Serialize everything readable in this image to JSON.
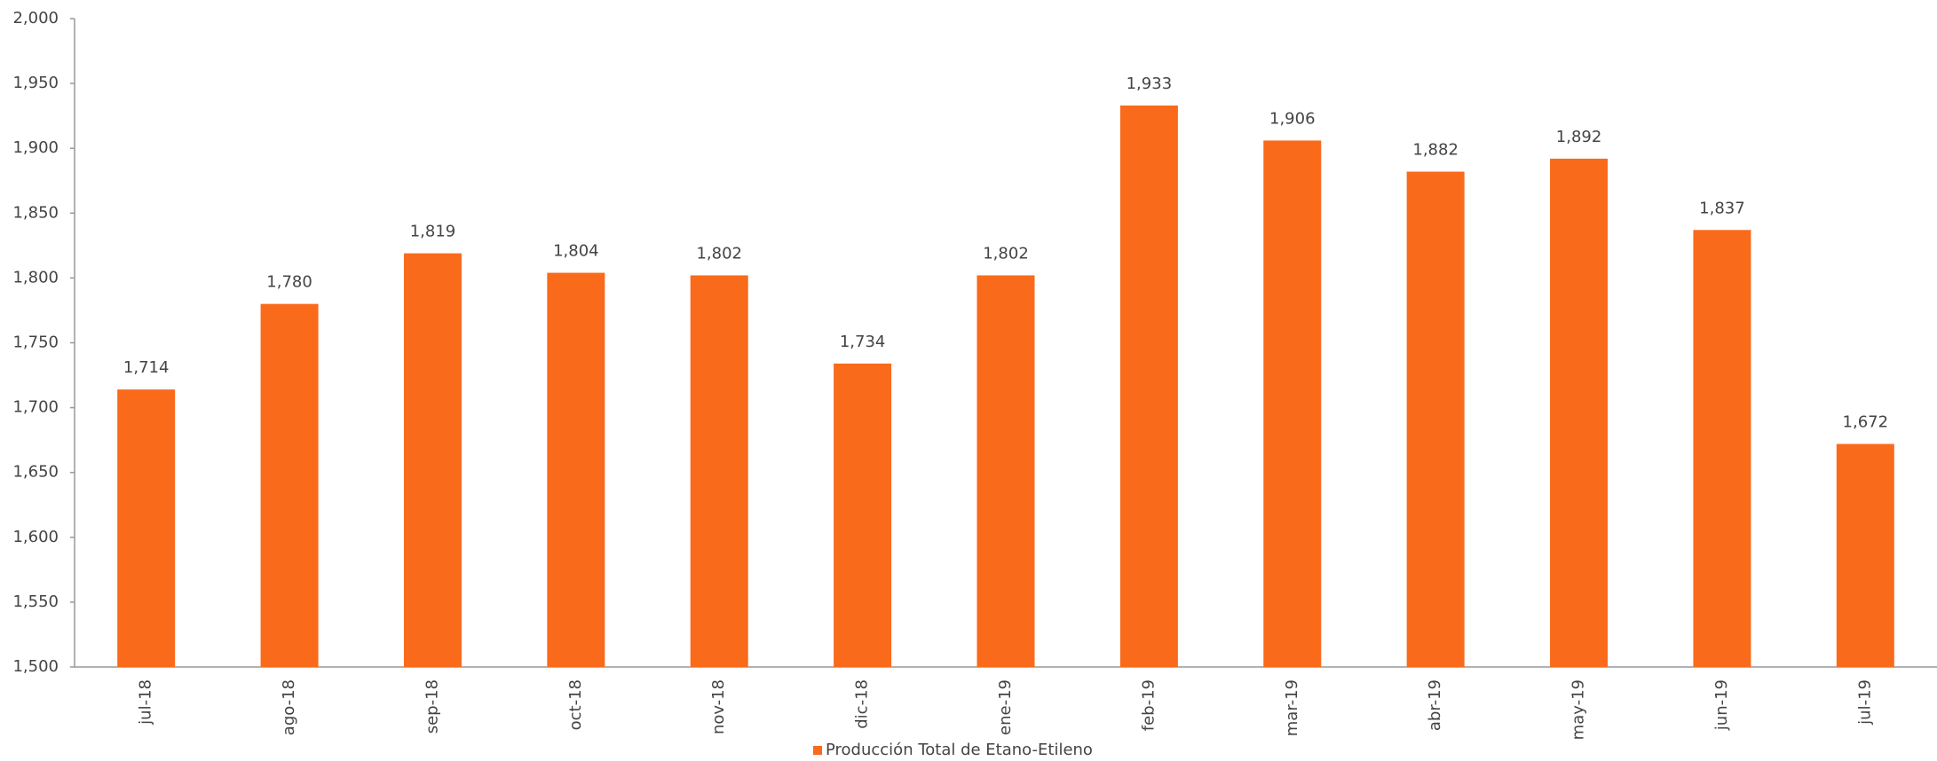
{
  "chart_data": {
    "type": "bar",
    "categories": [
      "jul-18",
      "ago-18",
      "sep-18",
      "oct-18",
      "nov-18",
      "dic-18",
      "ene-19",
      "feb-19",
      "mar-19",
      "abr-19",
      "may-19",
      "jun-19",
      "jul-19"
    ],
    "series": [
      {
        "name": "Producción Total de Etano-Etileno",
        "color": "#f96a1b",
        "values": [
          1714,
          1780,
          1819,
          1804,
          1802,
          1734,
          1802,
          1933,
          1906,
          1882,
          1892,
          1837,
          1672
        ],
        "value_labels": [
          "1,714",
          "1,780",
          "1,819",
          "1,804",
          "1,802",
          "1,734",
          "1,802",
          "1,933",
          "1,906",
          "1,882",
          "1,892",
          "1,837",
          "1,672"
        ]
      }
    ],
    "ylim": [
      1500,
      2000
    ],
    "yticks": [
      {
        "value": 1500,
        "label": "1,500"
      },
      {
        "value": 1550,
        "label": "1,550"
      },
      {
        "value": 1600,
        "label": "1,600"
      },
      {
        "value": 1650,
        "label": "1,650"
      },
      {
        "value": 1700,
        "label": "1,700"
      },
      {
        "value": 1750,
        "label": "1,750"
      },
      {
        "value": 1800,
        "label": "1,800"
      },
      {
        "value": 1850,
        "label": "1,850"
      },
      {
        "value": 1900,
        "label": "1,900"
      },
      {
        "value": 1950,
        "label": "1,950"
      },
      {
        "value": 2000,
        "label": "2,000"
      }
    ],
    "grid": false,
    "legend": "bottom"
  }
}
